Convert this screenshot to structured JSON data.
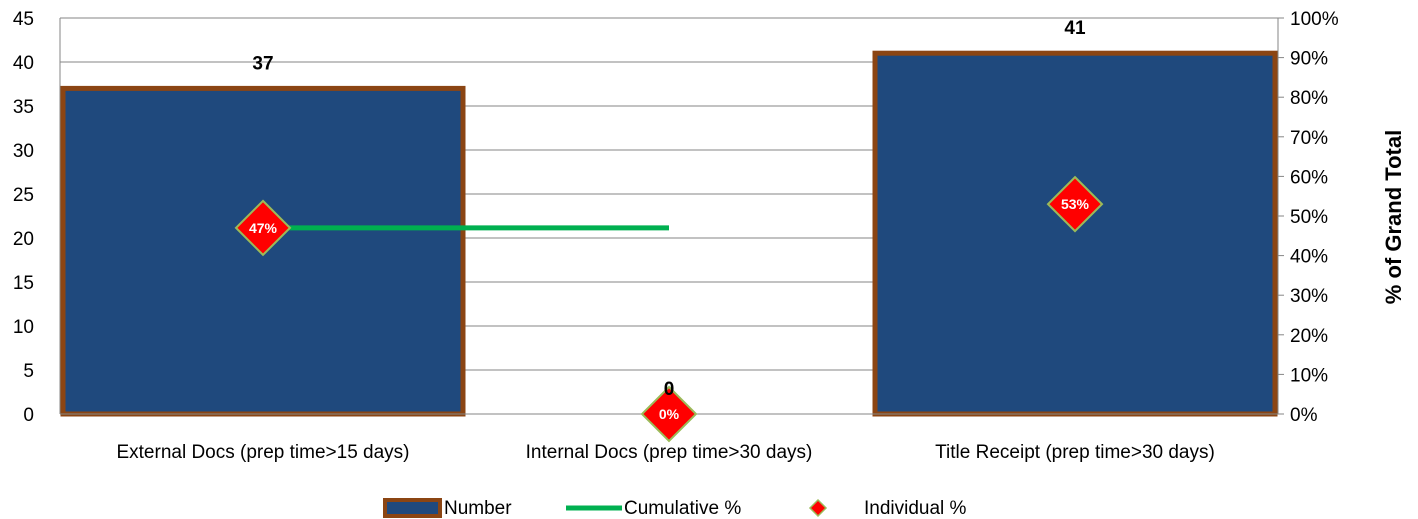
{
  "chart_data": {
    "type": "bar",
    "categories": [
      "External Docs (prep time>15 days)",
      "Internal Docs (prep time>30 days)",
      "Title Receipt (prep time>30 days)"
    ],
    "series": [
      {
        "name": "Number",
        "type": "bar",
        "axis": "left",
        "values": [
          37,
          0,
          41
        ],
        "color": "#1F497D",
        "border_color": "#8B4513"
      },
      {
        "name": "Cumulative %",
        "type": "line",
        "axis": "right",
        "values": [
          0.47,
          0.47,
          null
        ],
        "color": "#00B050"
      },
      {
        "name": "Individual %",
        "type": "scatter",
        "marker": "diamond",
        "axis": "right",
        "values": [
          0.47,
          0.0,
          0.53
        ],
        "labels": [
          "47%",
          "0%",
          "53%"
        ],
        "color": "#FF0000"
      }
    ],
    "data_labels": [
      "37",
      "0",
      "41"
    ],
    "y_left": {
      "min": 0,
      "max": 45,
      "step": 5,
      "ticks": [
        "0",
        "5",
        "10",
        "15",
        "20",
        "25",
        "30",
        "35",
        "40",
        "45"
      ]
    },
    "y_right": {
      "min": 0,
      "max": 1,
      "step": 0.1,
      "label": "% of Grand Total",
      "ticks": [
        "0%",
        "10%",
        "20%",
        "30%",
        "40%",
        "50%",
        "60%",
        "70%",
        "80%",
        "90%",
        "100%"
      ]
    },
    "grid": true,
    "legend_position": "bottom"
  }
}
